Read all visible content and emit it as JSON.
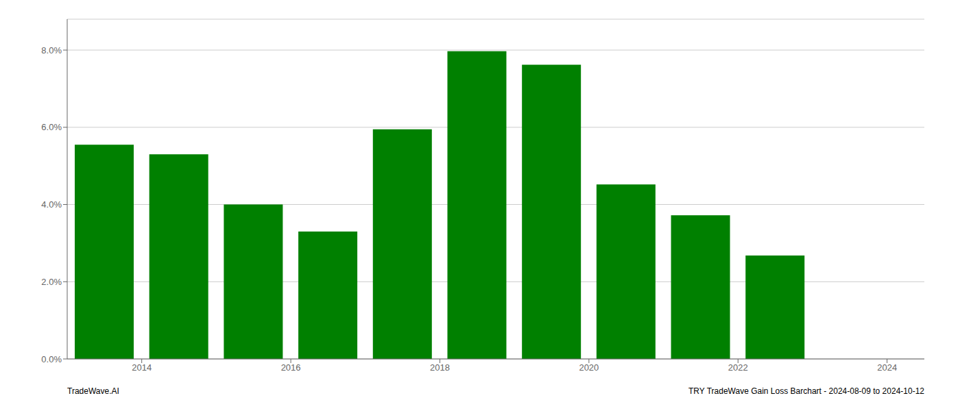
{
  "chart_data": {
    "type": "bar",
    "x": [
      2013.5,
      2014.5,
      2015.5,
      2016.5,
      2017.5,
      2018.5,
      2019.5,
      2020.5,
      2021.5,
      2022.5
    ],
    "values": [
      0.0555,
      0.053,
      0.04,
      0.033,
      0.0595,
      0.0797,
      0.0762,
      0.0452,
      0.0372,
      0.0268
    ],
    "color": "#008000",
    "xlim": [
      2013.0,
      2024.5
    ],
    "xticks": [
      2014,
      2016,
      2018,
      2020,
      2022,
      2024
    ],
    "ylim": [
      0,
      0.088
    ],
    "yticks": [
      {
        "value": 0.0,
        "label": "0.0%"
      },
      {
        "value": 0.02,
        "label": "2.0%"
      },
      {
        "value": 0.04,
        "label": "4.0%"
      },
      {
        "value": 0.06,
        "label": "6.0%"
      },
      {
        "value": 0.08,
        "label": "8.0%"
      }
    ],
    "grid": true,
    "annotations": [
      "TradeWave.AI",
      "TRY TradeWave Gain Loss Barchart - 2024-08-09 to 2024-10-12"
    ]
  }
}
